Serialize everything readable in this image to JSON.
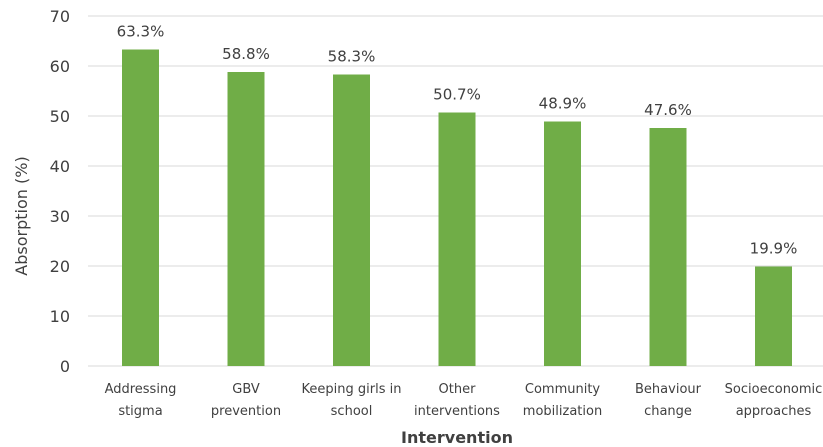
{
  "chart_data": {
    "type": "bar",
    "categories": [
      [
        "Addressing",
        "stigma"
      ],
      [
        "GBV",
        "prevention"
      ],
      [
        "Keeping girls in",
        "school"
      ],
      [
        "Other",
        "interventions"
      ],
      [
        "Community",
        "mobilization"
      ],
      [
        "Behaviour",
        "change"
      ],
      [
        "Socioeconomic",
        "approaches"
      ]
    ],
    "values": [
      63.3,
      58.8,
      58.3,
      50.7,
      48.9,
      47.6,
      19.9
    ],
    "data_labels": [
      "63.3%",
      "58.8%",
      "58.3%",
      "50.7%",
      "48.9%",
      "47.6%",
      "19.9%"
    ],
    "xlabel": "Intervention",
    "ylabel": "Absorption (%)",
    "ylim": [
      0,
      70
    ],
    "yticks": [
      0,
      10,
      20,
      30,
      40,
      50,
      60,
      70
    ],
    "grid": true,
    "bar_color": "#70AD47",
    "grid_color": "#D9D9D9"
  }
}
